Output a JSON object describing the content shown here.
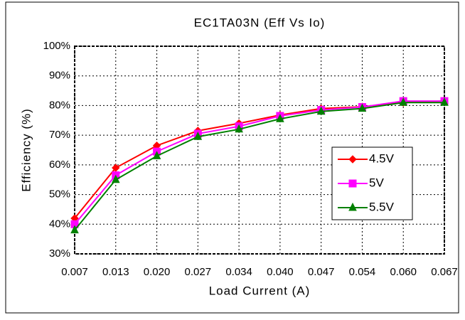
{
  "chart_data": {
    "type": "line",
    "title": "EC1TA03N  (Eff Vs Io)",
    "x_label": "Load Current (A)",
    "y_label": "Efficiency (%)",
    "categories": [
      "0.007",
      "0.013",
      "0.020",
      "0.027",
      "0.034",
      "0.040",
      "0.047",
      "0.054",
      "0.060",
      "0.067"
    ],
    "series": [
      {
        "name": "4.5V",
        "color": "#ff0000",
        "marker": "diamond",
        "values": [
          42,
          59,
          66.5,
          71.5,
          74,
          76.8,
          79,
          79.6,
          81,
          81.5
        ]
      },
      {
        "name": "5V",
        "color": "#ff00ff",
        "marker": "square",
        "values": [
          40,
          56.5,
          64.5,
          70.5,
          73,
          76.5,
          78.5,
          79.5,
          81.5,
          81.5
        ]
      },
      {
        "name": "5.5V",
        "color": "#008000",
        "marker": "triangle",
        "values": [
          38,
          55,
          63,
          69.5,
          72,
          75.5,
          78,
          79,
          81,
          81
        ]
      }
    ],
    "ylim": [
      30,
      100
    ],
    "yticks": [
      {
        "value": 30,
        "label": "30%"
      },
      {
        "value": 40,
        "label": "40%"
      },
      {
        "value": 50,
        "label": "50%"
      },
      {
        "value": 60,
        "label": "60%"
      },
      {
        "value": 70,
        "label": "70%"
      },
      {
        "value": 80,
        "label": "80%"
      },
      {
        "value": 90,
        "label": "90%"
      },
      {
        "value": 100,
        "label": "100%"
      }
    ],
    "grid": true,
    "legend": "center right"
  }
}
